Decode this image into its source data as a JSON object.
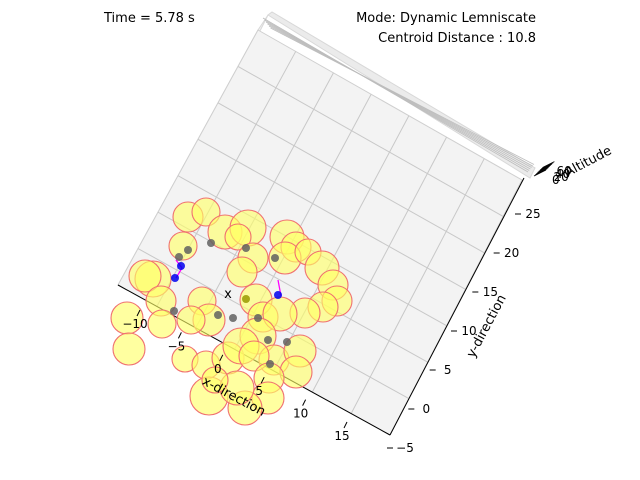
{
  "header": {
    "time_text": "Time = 5.78 s",
    "mode_text": "Mode: Dynamic Lemniscate",
    "centroid_text": "Centroid Distance : 10.8"
  },
  "chart_data": {
    "type": "scatter",
    "projection": "3d",
    "title": "",
    "xlabel": "x-direction",
    "ylabel": "y-direction",
    "zlabel": "Altitude",
    "x_ticks": [
      "−10",
      "−5",
      "0",
      "5",
      "10",
      "15"
    ],
    "y_ticks": [
      "−5",
      "0",
      "5",
      "10",
      "15",
      "20",
      "25"
    ],
    "z_ticks": [
      "0",
      "20",
      "40",
      "60"
    ],
    "grid": true,
    "colors": {
      "sphere_fill": "#ffff66",
      "sphere_edge": "#f07070",
      "agent_blue": "#0000ee",
      "agent_gray": "#606060",
      "agent_olive": "#999900",
      "link_magenta": "#ff00ff",
      "centroid_marker": "#000000"
    },
    "agents_count": 44,
    "centroid_marker_label": "x"
  }
}
